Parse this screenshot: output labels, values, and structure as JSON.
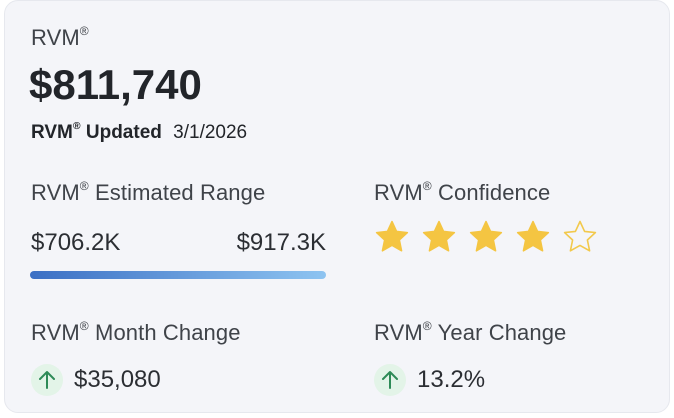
{
  "rvm": {
    "title": "RVM",
    "reg_mark": "®",
    "value": "$811,740",
    "updated_label": "Updated",
    "updated_date": "3/1/2026"
  },
  "range": {
    "label": "Estimated Range",
    "low": "$706.2K",
    "high": "$917.3K",
    "bar_colors": [
      "#3b6fc4",
      "#8ec4f1"
    ]
  },
  "confidence": {
    "label": "Confidence",
    "rating": 4,
    "max": 5,
    "star_color": "#f4c542",
    "star_outline_color": "#f2c94c"
  },
  "month_change": {
    "label": "Month Change",
    "value": "$35,080",
    "icon": "arrow-up-icon",
    "icon_color": "#2e8b57"
  },
  "year_change": {
    "label": "Year Change",
    "value": "13.2%",
    "icon": "arrow-up-icon",
    "icon_color": "#2e8b57"
  }
}
